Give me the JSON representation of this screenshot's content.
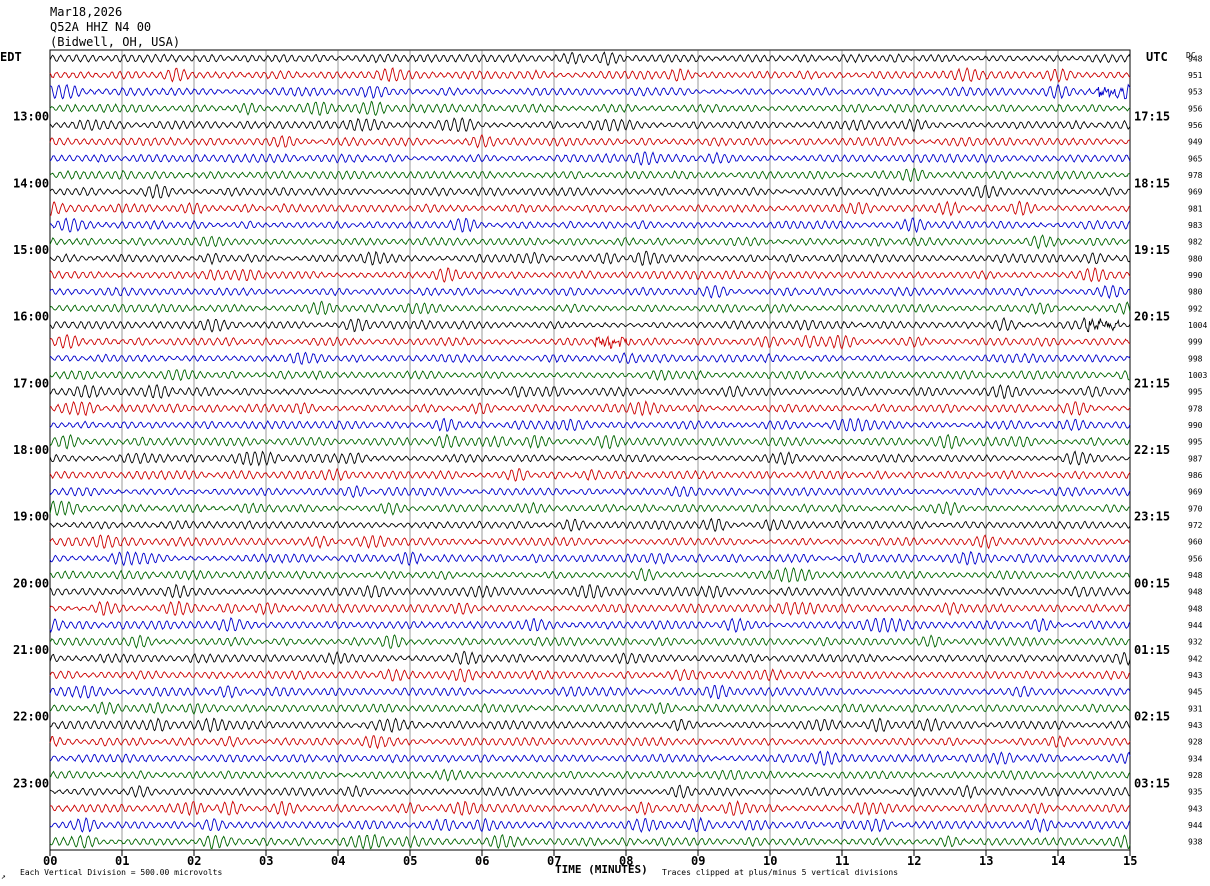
{
  "header": {
    "date": "Mar18,2026",
    "station": "Q52A HHZ N4 00",
    "location": "(Bidwell, OH, USA)"
  },
  "labels": {
    "left_tz": "EDT",
    "right_tz": "UTC",
    "dc": "DC",
    "xaxis_title": "TIME (MINUTES)",
    "scale_note": "Each Vertical Division =  500.00 microvolts",
    "clip_note": "Traces clipped at plus/minus 5 vertical divisions"
  },
  "colors": {
    "cycle": [
      "#000000",
      "#cc0000",
      "#0000cc",
      "#006600"
    ],
    "grid": "#000000"
  },
  "chart_data": {
    "type": "line",
    "title": "Q52A HHZ N4 00 (Bidwell, OH, USA) Mar18,2026",
    "xlabel": "TIME (MINUTES)",
    "xlim": [
      0,
      15
    ],
    "x_ticks": [
      "00",
      "01",
      "02",
      "03",
      "04",
      "05",
      "06",
      "07",
      "08",
      "09",
      "10",
      "11",
      "12",
      "13",
      "14",
      "15"
    ],
    "rows_per_hour": 4,
    "row_minutes": 15,
    "left_hour_labels": [
      "13:00",
      "14:00",
      "15:00",
      "16:00",
      "17:00",
      "18:00",
      "19:00",
      "20:00",
      "21:00",
      "22:00",
      "23:00"
    ],
    "right_hour_labels": [
      "17:15",
      "18:15",
      "19:15",
      "20:15",
      "21:15",
      "22:15",
      "23:15",
      "00:15",
      "01:15",
      "02:15",
      "03:15"
    ],
    "dc_values": [
      "948",
      "951",
      "953",
      "956",
      "956",
      "949",
      "965",
      "978",
      "969",
      "981",
      "983",
      "982",
      "980",
      "990",
      "980",
      "992",
      "1004",
      "999",
      "998",
      "1003",
      "995",
      "978",
      "990",
      "995",
      "987",
      "986",
      "969",
      "970",
      "972",
      "960",
      "956",
      "948",
      "948",
      "948",
      "944",
      "932",
      "942",
      "943",
      "945",
      "931",
      "943",
      "928",
      "934",
      "928",
      "935",
      "943",
      "944",
      "938"
    ],
    "trace_count": 48,
    "events": [
      {
        "row": 16,
        "minute": 14.6,
        "note": "noise burst"
      },
      {
        "row": 17,
        "minute": 7.8,
        "note": "noise burst"
      },
      {
        "row": 2,
        "minute": 14.8,
        "note": "large amplitude"
      }
    ]
  }
}
